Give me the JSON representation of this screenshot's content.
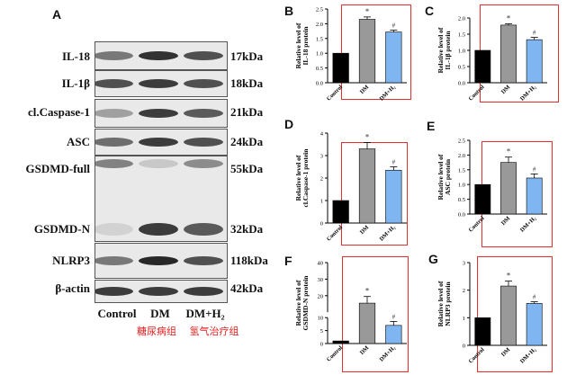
{
  "western_blot": {
    "panel_letter": "A",
    "proteins": [
      "IL-18",
      "IL-1β",
      "cl.Caspase-1",
      "ASC",
      "GSDMD-full",
      "GSDMD-N",
      "NLRP3",
      "β-actin"
    ],
    "kda": [
      "17kDa",
      "18kDa",
      "21kDa",
      "24kDa",
      "55kDa",
      "32kDa",
      "118kDa",
      "42kDa"
    ],
    "lanes": [
      "Control",
      "DM",
      "DM+H₂"
    ],
    "group_labels_cn": [
      "糖尿病组",
      "氢气治疗组"
    ]
  },
  "chart_data": [
    {
      "panel": "B",
      "type": "bar",
      "categories": [
        "Control",
        "DM",
        "DM+H₂"
      ],
      "values": [
        1.0,
        2.15,
        1.72
      ],
      "errors": [
        0,
        0.08,
        0.06
      ],
      "ylabel": "Relative level of IL-18 protein",
      "ylim": [
        0,
        2.5
      ],
      "yticks": [
        0.0,
        0.5,
        1.0,
        1.5,
        2.0,
        2.5
      ],
      "tick_labels": [
        "0.0",
        "0.5",
        "1.0",
        "1.5",
        "2.0",
        "2.5"
      ],
      "markers": [
        "",
        "*",
        "#"
      ]
    },
    {
      "panel": "C",
      "type": "bar",
      "categories": [
        "Control",
        "DM",
        "DM+H₂"
      ],
      "values": [
        1.0,
        1.78,
        1.33
      ],
      "errors": [
        0,
        0.04,
        0.07
      ],
      "ylabel": "Relative level of IL-1β protein",
      "ylim": [
        0,
        2.0
      ],
      "yticks": [
        0.0,
        0.5,
        1.0,
        1.5,
        2.0
      ],
      "tick_labels": [
        "0.0",
        "0.5",
        "1.0",
        "1.5",
        "2.0"
      ],
      "markers": [
        "",
        "*",
        "#"
      ]
    },
    {
      "panel": "D",
      "type": "bar",
      "categories": [
        "Control",
        "DM",
        "DM+H₂"
      ],
      "values": [
        1.0,
        3.3,
        2.35
      ],
      "errors": [
        0,
        0.28,
        0.15
      ],
      "ylabel": "Relative level of cl.Caspase-1 protein",
      "ylim": [
        0,
        4
      ],
      "yticks": [
        0,
        1,
        2,
        3,
        4
      ],
      "tick_labels": [
        "0",
        "1",
        "2",
        "3",
        "4"
      ],
      "markers": [
        "",
        "*",
        "#"
      ]
    },
    {
      "panel": "E",
      "type": "bar",
      "categories": [
        "Control",
        "DM",
        "DM+H₂"
      ],
      "values": [
        1.0,
        1.75,
        1.22
      ],
      "errors": [
        0,
        0.18,
        0.14
      ],
      "ylabel": "Relative level of ASC protein",
      "ylim": [
        0,
        2.5
      ],
      "yticks": [
        0.0,
        0.5,
        1.0,
        1.5,
        2.0,
        2.5
      ],
      "tick_labels": [
        "0.0",
        "0.5",
        "1.0",
        "1.5",
        "2.0",
        "2.5"
      ],
      "markers": [
        "",
        "*",
        "#"
      ]
    },
    {
      "panel": "F",
      "type": "bar",
      "broken_axis": true,
      "categories": [
        "Control",
        "DM",
        "DM+H₂"
      ],
      "values": [
        1.0,
        15.5,
        7.0
      ],
      "errors": [
        0,
        4.0,
        1.5
      ],
      "ylabel": "Relative level of GSDMD-N protein",
      "ylim": [
        0,
        40
      ],
      "yticks": [
        0,
        5,
        10,
        20,
        30,
        40
      ],
      "tick_labels": [
        "0",
        "5",
        "10",
        "20",
        "30",
        "40"
      ],
      "markers": [
        "",
        "*",
        "#"
      ]
    },
    {
      "panel": "G",
      "type": "bar",
      "categories": [
        "Control",
        "DM",
        "DM+H₂"
      ],
      "values": [
        1.0,
        2.15,
        1.52
      ],
      "errors": [
        0,
        0.18,
        0.06
      ],
      "ylabel": "Relative level of NLRP3 protein",
      "ylim": [
        0,
        3
      ],
      "yticks": [
        0,
        1,
        2,
        3
      ],
      "tick_labels": [
        "0",
        "1",
        "2",
        "3"
      ],
      "markers": [
        "",
        "*",
        "#"
      ]
    }
  ],
  "colors": {
    "control": "#000000",
    "dm": "#999999",
    "h2": "#7fb5f0",
    "highlight": "#e03030"
  }
}
